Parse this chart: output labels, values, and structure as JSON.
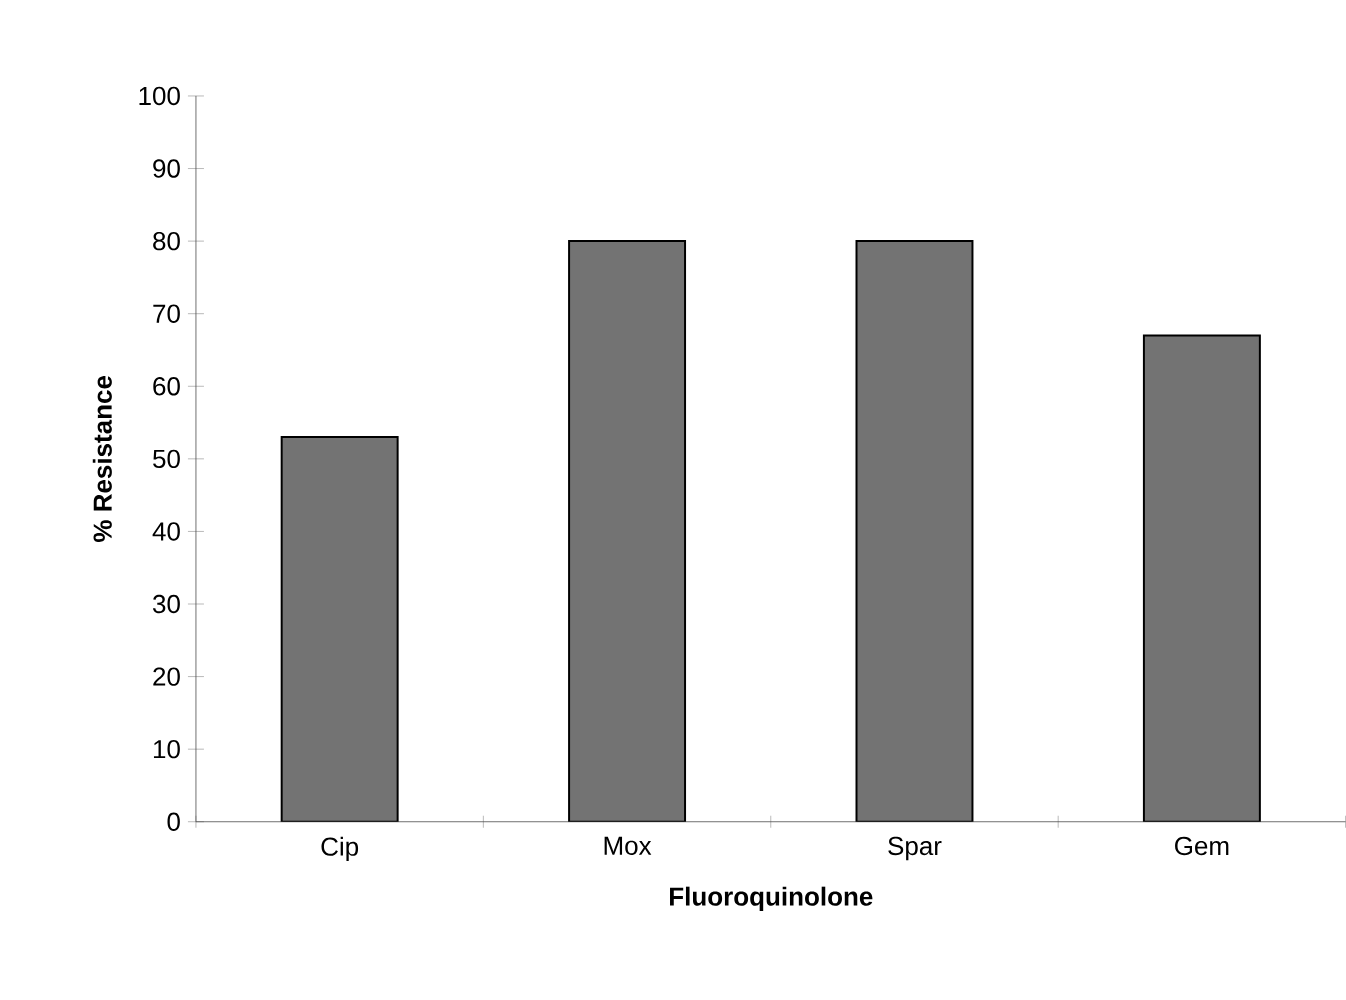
{
  "chart_data": {
    "type": "bar",
    "xlabel": "Fluoroquinolone",
    "ylabel": "% Resistance",
    "categories": [
      "Cip",
      "Mox",
      "Spar",
      "Gem"
    ],
    "values": [
      53,
      80,
      80,
      67
    ],
    "color": "#737373",
    "ylim": [
      0,
      100
    ],
    "yticks": [
      0,
      10,
      20,
      30,
      40,
      50,
      60,
      70,
      80,
      90,
      100
    ],
    "grid": false
  }
}
